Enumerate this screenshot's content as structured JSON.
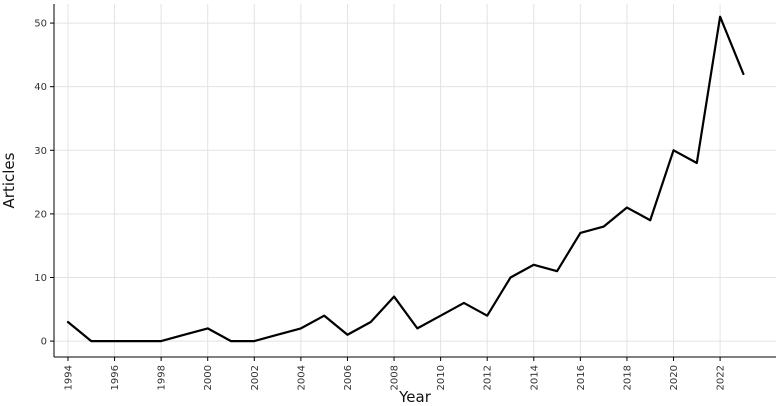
{
  "chart_data": {
    "type": "line",
    "xlabel": "Year",
    "ylabel": "Articles",
    "xlim": [
      1993.4,
      2024.4
    ],
    "ylim": [
      -2.5,
      53
    ],
    "x_ticks": [
      1994,
      1996,
      1998,
      2000,
      2002,
      2004,
      2006,
      2008,
      2010,
      2012,
      2014,
      2016,
      2018,
      2020,
      2022
    ],
    "y_ticks": [
      0,
      10,
      20,
      30,
      40,
      50
    ],
    "grid": true,
    "legend": "none",
    "series": [
      {
        "color": "#000000",
        "x": [
          1994,
          1995,
          1996,
          1997,
          1998,
          1999,
          2000,
          2001,
          2002,
          2003,
          2004,
          2005,
          2006,
          2007,
          2008,
          2009,
          2010,
          2011,
          2012,
          2013,
          2014,
          2015,
          2016,
          2017,
          2018,
          2019,
          2020,
          2021,
          2022,
          2023
        ],
        "y": [
          3,
          0,
          0,
          0,
          0,
          1,
          2,
          0,
          0,
          1,
          2,
          4,
          1,
          3,
          7,
          2,
          4,
          6,
          4,
          10,
          12,
          11,
          17,
          18,
          21,
          19,
          30,
          28,
          51,
          42
        ]
      }
    ]
  }
}
